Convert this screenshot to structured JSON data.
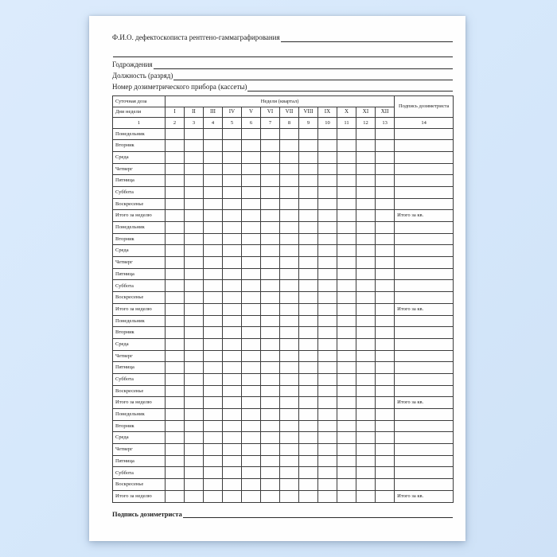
{
  "colors": {
    "background": "#d6e8fb",
    "paper": "#fefefe",
    "grid_line": "#3c3c3c",
    "text": "#1c1c1c"
  },
  "header_lines": {
    "fio_label": "Ф.И.О. дефектоскописта рентгено-гаммаграфирования",
    "birth_year_label": "Годрождения",
    "position_label": "Должность (разряд)",
    "device_number_label": "Номер дозиметрического прибора (кассеты)"
  },
  "table": {
    "corner_top": "Суточная доза",
    "corner_bottom": "Дни недели",
    "weeks_header": "Недели (квартал)",
    "signature_header": "Подпись дозиметриста",
    "week_columns": [
      "I",
      "II",
      "III",
      "IV",
      "V",
      "VI",
      "VII",
      "VIII",
      "IX",
      "X",
      "XI",
      "XII"
    ],
    "number_row": [
      "1",
      "2",
      "3",
      "4",
      "5",
      "6",
      "7",
      "8",
      "9",
      "10",
      "11",
      "12",
      "13",
      "14"
    ],
    "day_rows": [
      "Понедельник",
      "Вторник",
      "Среда",
      "Четверг",
      "Пятница",
      "Суббота",
      "Воскресенье"
    ],
    "total_row_label": "Итого за неделю",
    "quarter_total_label": "Итого за кв.",
    "week_blocks": 4
  },
  "footer": {
    "signature_label": "Подпись дозиметриста"
  }
}
